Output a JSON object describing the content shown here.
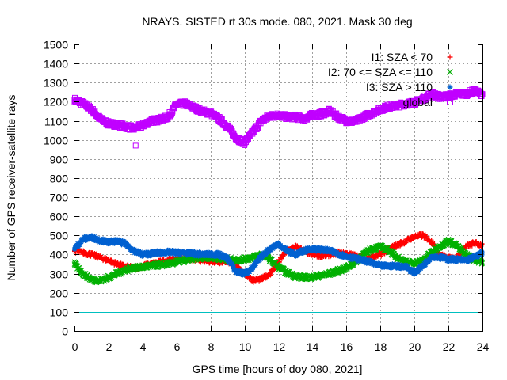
{
  "chart_data": {
    "type": "scatter",
    "title": "NRAYS. SISTED rt 30s mode. 080, 2021. Mask 30 deg",
    "xlabel": "GPS time [hours of doy 080, 2021]",
    "ylabel": "Number of GPS receiver-satellite rays",
    "xlim": [
      0,
      24
    ],
    "ylim": [
      0,
      1500
    ],
    "x_ticks": [
      "0",
      "2",
      "4",
      "6",
      "8",
      "10",
      "12",
      "14",
      "16",
      "18",
      "20",
      "22",
      "24"
    ],
    "y_ticks": [
      "0",
      "100",
      "200",
      "300",
      "400",
      "500",
      "600",
      "700",
      "800",
      "900",
      "1000",
      "1100",
      "1200",
      "1300",
      "1400",
      "1500"
    ],
    "grid": true,
    "legend_position": "top-right",
    "threshold": {
      "y": 100,
      "color": "#00c0c0"
    },
    "series": [
      {
        "name": "I1: SZA < 70",
        "marker": "+",
        "color": "#ff0000",
        "x": [
          0,
          0.5,
          1,
          1.5,
          2,
          2.5,
          3,
          3.5,
          4,
          4.5,
          5,
          5.5,
          6,
          6.5,
          7,
          7.5,
          8,
          8.5,
          9,
          9.5,
          10,
          10.5,
          11,
          11.5,
          12,
          12.5,
          13,
          13.5,
          14,
          14.5,
          15,
          15.5,
          16,
          16.5,
          17,
          17.5,
          18,
          18.5,
          19,
          19.5,
          20,
          20.5,
          21,
          21.5,
          22,
          22.5,
          23,
          23.5,
          24
        ],
        "values": [
          420,
          410,
          400,
          385,
          370,
          350,
          335,
          330,
          340,
          350,
          360,
          370,
          375,
          378,
          375,
          370,
          365,
          362,
          365,
          340,
          300,
          265,
          270,
          300,
          360,
          420,
          440,
          420,
          400,
          395,
          400,
          410,
          405,
          395,
          380,
          385,
          400,
          430,
          450,
          470,
          495,
          500,
          470,
          400,
          380,
          385,
          440,
          460,
          450
        ]
      },
      {
        "name": "I2: 70 <= SZA <= 110",
        "marker": "x",
        "color": "#00b000",
        "x": [
          0,
          0.5,
          1,
          1.5,
          2,
          2.5,
          3,
          3.5,
          4,
          4.5,
          5,
          5.5,
          6,
          6.5,
          7,
          7.5,
          8,
          8.5,
          9,
          9.5,
          10,
          10.5,
          11,
          11.5,
          12,
          12.5,
          13,
          13.5,
          14,
          14.5,
          15,
          15.5,
          16,
          16.5,
          17,
          17.5,
          18,
          18.5,
          19,
          19.5,
          20,
          20.5,
          21,
          21.5,
          22,
          22.5,
          23,
          23.5,
          24
        ],
        "values": [
          350,
          300,
          270,
          262,
          280,
          300,
          320,
          330,
          335,
          340,
          345,
          350,
          360,
          370,
          380,
          385,
          385,
          380,
          375,
          370,
          375,
          385,
          400,
          375,
          335,
          305,
          285,
          280,
          282,
          290,
          300,
          315,
          330,
          360,
          400,
          430,
          440,
          420,
          385,
          360,
          355,
          370,
          410,
          445,
          470,
          445,
          400,
          375,
          360
        ]
      },
      {
        "name": "I3: SZA > 110",
        "marker": "*",
        "color": "#0060d0",
        "x": [
          0,
          0.5,
          1,
          1.5,
          2,
          2.5,
          3,
          3.5,
          4,
          4.5,
          5,
          5.5,
          6,
          6.5,
          7,
          7.5,
          8,
          8.5,
          9,
          9.5,
          10,
          10.5,
          11,
          11.5,
          12,
          12.5,
          13,
          13.5,
          14,
          14.5,
          15,
          15.5,
          16,
          16.5,
          17,
          17.5,
          18,
          18.5,
          19,
          19.5,
          20,
          20.5,
          21,
          21.5,
          22,
          22.5,
          23,
          23.5,
          24
        ],
        "values": [
          430,
          480,
          490,
          475,
          465,
          470,
          455,
          420,
          400,
          405,
          410,
          412,
          410,
          408,
          405,
          400,
          402,
          400,
          380,
          310,
          300,
          330,
          390,
          430,
          455,
          420,
          400,
          420,
          430,
          425,
          420,
          405,
          390,
          380,
          370,
          355,
          340,
          340,
          340,
          335,
          305,
          340,
          390,
          385,
          375,
          375,
          370,
          385,
          410
        ]
      },
      {
        "name": "global",
        "marker": "square",
        "color": "#c000ff",
        "x": [
          0,
          0.5,
          1,
          1.5,
          2,
          2.5,
          3,
          3.5,
          4,
          4.5,
          5,
          5.5,
          6,
          6.5,
          7,
          7.5,
          8,
          8.5,
          9,
          9.5,
          10,
          10.5,
          11,
          11.5,
          12,
          12.5,
          13,
          13.5,
          14,
          14.5,
          15,
          15.5,
          16,
          16.5,
          17,
          17.5,
          18,
          18.5,
          19,
          19.5,
          20,
          20.5,
          21,
          21.5,
          22,
          22.5,
          23,
          23.5,
          24
        ],
        "values": [
          1210,
          1190,
          1160,
          1110,
          1085,
          1080,
          1070,
          1060,
          1075,
          1100,
          1105,
          1120,
          1185,
          1190,
          1170,
          1150,
          1140,
          1110,
          1070,
          1010,
          985,
          1040,
          1100,
          1125,
          1130,
          1120,
          1120,
          1110,
          1130,
          1135,
          1150,
          1120,
          1100,
          1095,
          1120,
          1140,
          1160,
          1175,
          1180,
          1190,
          1195,
          1215,
          1240,
          1225,
          1230,
          1240,
          1240,
          1255,
          1240
        ]
      }
    ],
    "outliers": [
      {
        "series": "global",
        "x": 3.6,
        "y": 970
      }
    ]
  }
}
